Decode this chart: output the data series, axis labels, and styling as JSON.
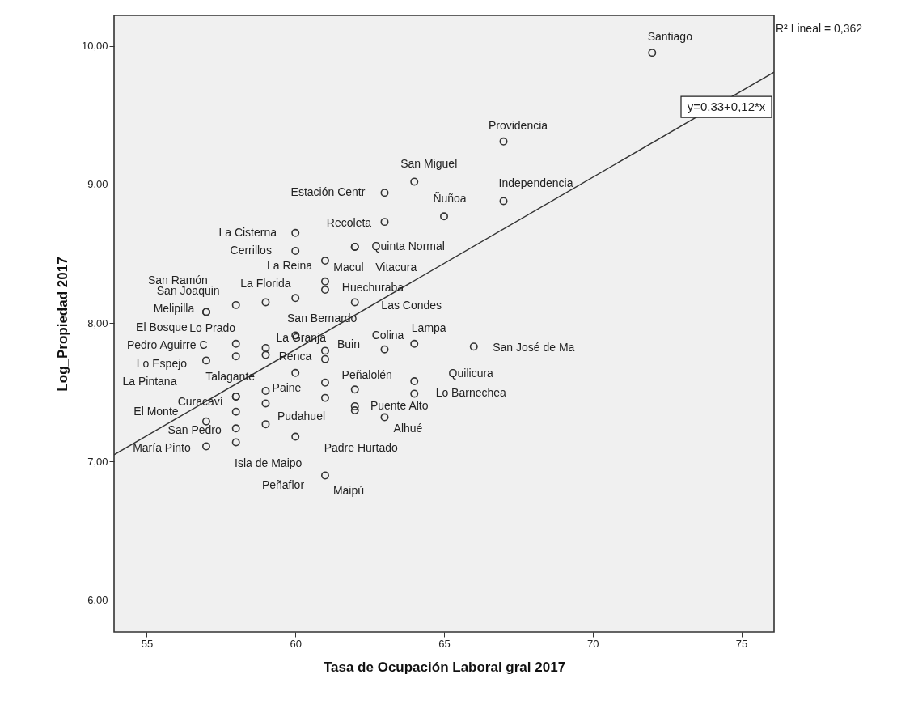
{
  "chart_data": {
    "type": "scatter",
    "xlabel": "Tasa de Ocupación Laboral gral 2017",
    "ylabel": "Log_Propiedad 2017",
    "xlim": [
      53.9,
      76.1
    ],
    "ylim": [
      5.77,
      10.22
    ],
    "xticks": [
      55,
      60,
      65,
      70,
      75
    ],
    "yticks": [
      {
        "value": 6,
        "label": "6,00"
      },
      {
        "value": 7,
        "label": "7,00"
      },
      {
        "value": 8,
        "label": "8,00"
      },
      {
        "value": 9,
        "label": "9,00"
      },
      {
        "value": 10,
        "label": "10,00"
      }
    ],
    "series": [
      {
        "marker": "circle",
        "color": "#333333",
        "x": [
          72,
          67,
          67,
          64,
          63,
          65,
          63,
          60,
          60,
          62,
          62,
          61,
          61,
          61,
          58,
          59,
          60,
          62,
          57,
          57,
          58,
          59,
          60,
          61,
          61,
          63,
          64,
          66,
          57,
          58,
          59,
          60,
          61,
          62,
          64,
          64,
          58,
          58,
          59,
          61,
          59,
          58,
          62,
          62,
          63,
          57,
          59,
          58,
          60,
          57,
          58,
          61
        ],
        "values": [
          9.95,
          9.31,
          8.88,
          9.02,
          8.94,
          8.77,
          8.73,
          8.65,
          8.52,
          8.55,
          8.55,
          8.45,
          8.3,
          8.24,
          8.13,
          8.15,
          8.18,
          8.15,
          8.08,
          8.08,
          7.85,
          7.82,
          7.91,
          7.8,
          7.74,
          7.81,
          7.85,
          7.83,
          7.73,
          7.76,
          7.77,
          7.64,
          7.57,
          7.52,
          7.58,
          7.49,
          7.47,
          7.47,
          7.51,
          7.46,
          7.42,
          7.36,
          7.4,
          7.37,
          7.32,
          7.29,
          7.27,
          7.24,
          7.18,
          7.11,
          7.14,
          6.9
        ]
      },
      {
        "type": "line",
        "name": "y=0,33+0,12*x",
        "color": "#333333",
        "x": [
          53.9,
          76.1
        ],
        "values": [
          7.05,
          9.81
        ]
      }
    ],
    "annotations": [
      "R² Lineal = 0,362",
      {
        "text": "Santiago",
        "x": 72,
        "y": 9.95
      },
      {
        "text": "Providencia",
        "x": 67,
        "y": 9.31
      },
      {
        "text": "San Miguel",
        "x": 64,
        "y": 9.02
      },
      {
        "text": "Independencia",
        "x": 67,
        "y": 8.88
      },
      {
        "text": "Estación Centr",
        "x": 63,
        "y": 8.94
      },
      {
        "text": "Ñuñoa",
        "x": 65,
        "y": 8.77
      },
      {
        "text": "Recoleta",
        "x": 63,
        "y": 8.73
      },
      {
        "text": "La Cisterna",
        "x": 60,
        "y": 8.65
      },
      {
        "text": "Cerrillos",
        "x": 60,
        "y": 8.52
      },
      {
        "text": "Quinta Normal",
        "x": 62,
        "y": 8.55
      },
      {
        "text": "La Reina",
        "x": 61,
        "y": 8.45
      },
      {
        "text": "Macul",
        "x": 61,
        "y": 8.45
      },
      {
        "text": "Vitacura",
        "x": 62,
        "y": 8.55
      },
      {
        "text": "San Ramón",
        "x": 57,
        "y": 8.08
      },
      {
        "text": "La Florida",
        "x": 59,
        "y": 8.15
      },
      {
        "text": "San Joaquin",
        "x": 58,
        "y": 8.13
      },
      {
        "text": "Huechuraba",
        "x": 61,
        "y": 8.24
      },
      {
        "text": "Las Condes",
        "x": 62,
        "y": 8.15
      },
      {
        "text": "Melipilla",
        "x": 57,
        "y": 8.08
      },
      {
        "text": "San Bernardo",
        "x": 60,
        "y": 8.18
      },
      {
        "text": "El Bosque",
        "x": 57,
        "y": 8.08
      },
      {
        "text": "Lo Prado",
        "x": 58,
        "y": 7.85
      },
      {
        "text": "Lampa",
        "x": 64,
        "y": 7.85
      },
      {
        "text": "Colina",
        "x": 63,
        "y": 7.81
      },
      {
        "text": "La Granja",
        "x": 60,
        "y": 7.91
      },
      {
        "text": "Pedro Aguirre C",
        "x": 58,
        "y": 7.85
      },
      {
        "text": "Buin",
        "x": 61,
        "y": 7.8
      },
      {
        "text": "San José de Ma",
        "x": 66,
        "y": 7.83
      },
      {
        "text": "Renca",
        "x": 61,
        "y": 7.74
      },
      {
        "text": "Lo Espejo",
        "x": 57,
        "y": 7.73
      },
      {
        "text": "Talagante",
        "x": 58,
        "y": 7.47
      },
      {
        "text": "Peñalolén",
        "x": 62,
        "y": 7.52
      },
      {
        "text": "Quilicura",
        "x": 64,
        "y": 7.58
      },
      {
        "text": "La Pintana",
        "x": 57,
        "y": 7.73
      },
      {
        "text": "Paine",
        "x": 59,
        "y": 7.51
      },
      {
        "text": "Lo Barnechea",
        "x": 64,
        "y": 7.49
      },
      {
        "text": "Curacaví",
        "x": 58,
        "y": 7.47
      },
      {
        "text": "Puente Alto",
        "x": 62,
        "y": 7.4
      },
      {
        "text": "El Monte",
        "x": 57,
        "y": 7.29
      },
      {
        "text": "Pudahuel",
        "x": 59,
        "y": 7.27
      },
      {
        "text": "Alhué",
        "x": 63,
        "y": 7.32
      },
      {
        "text": "San Pedro",
        "x": 58,
        "y": 7.24
      },
      {
        "text": "María Pinto",
        "x": 57,
        "y": 7.11
      },
      {
        "text": "Padre Hurtado",
        "x": 60,
        "y": 7.18
      },
      {
        "text": "Isla de Maipo",
        "x": 58,
        "y": 7.14
      },
      {
        "text": "Peñaflor",
        "x": 61,
        "y": 6.9
      },
      {
        "text": "Maipú",
        "x": 61,
        "y": 6.9
      }
    ]
  }
}
